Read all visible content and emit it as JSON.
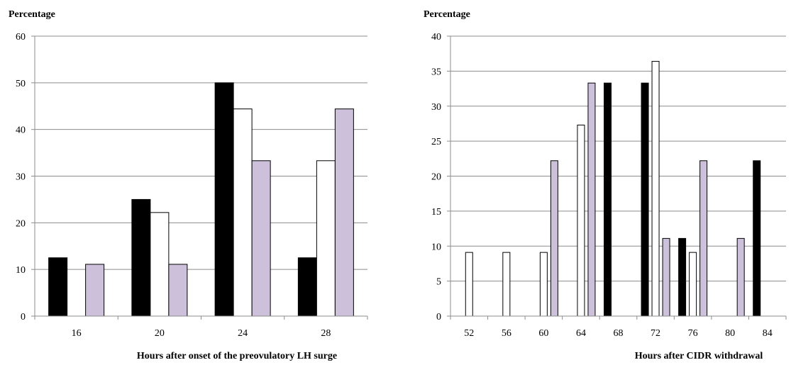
{
  "chart_data": [
    {
      "type": "bar",
      "title": "",
      "ylabel": "Percentage",
      "xlabel": "Hours after onset of the preovulatory LH surge",
      "categories": [
        "16",
        "20",
        "24",
        "28"
      ],
      "ylim": [
        0,
        60
      ],
      "yticks": [
        0,
        10,
        20,
        30,
        40,
        50,
        60
      ],
      "grid": true,
      "series": [
        {
          "values": [
            12.5,
            25,
            50,
            12.5
          ],
          "color": "#000000"
        },
        {
          "values": [
            0,
            22.2,
            44.4,
            33.3
          ],
          "color": "#ffffff"
        },
        {
          "values": [
            11.1,
            11.1,
            33.3,
            44.4
          ],
          "color": "#ccc0da"
        }
      ]
    },
    {
      "type": "bar",
      "title": "",
      "ylabel": "Percentage",
      "xlabel": "Hours after CIDR withdrawal",
      "categories": [
        "52",
        "56",
        "60",
        "64",
        "68",
        "72",
        "76",
        "80",
        "84"
      ],
      "ylim": [
        0,
        40
      ],
      "yticks": [
        0,
        5,
        10,
        15,
        20,
        25,
        30,
        35,
        40
      ],
      "grid": true,
      "series": [
        {
          "values": [
            0,
            0,
            0,
            0,
            33.3,
            33.3,
            11.1,
            0,
            22.2
          ],
          "color": "#000000"
        },
        {
          "values": [
            9.1,
            9.1,
            9.1,
            27.3,
            0,
            36.4,
            9.1,
            0,
            0
          ],
          "color": "#ffffff"
        },
        {
          "values": [
            0,
            0,
            22.2,
            33.3,
            0,
            11.1,
            22.2,
            11.1,
            0
          ],
          "color": "#ccc0da"
        }
      ]
    }
  ]
}
